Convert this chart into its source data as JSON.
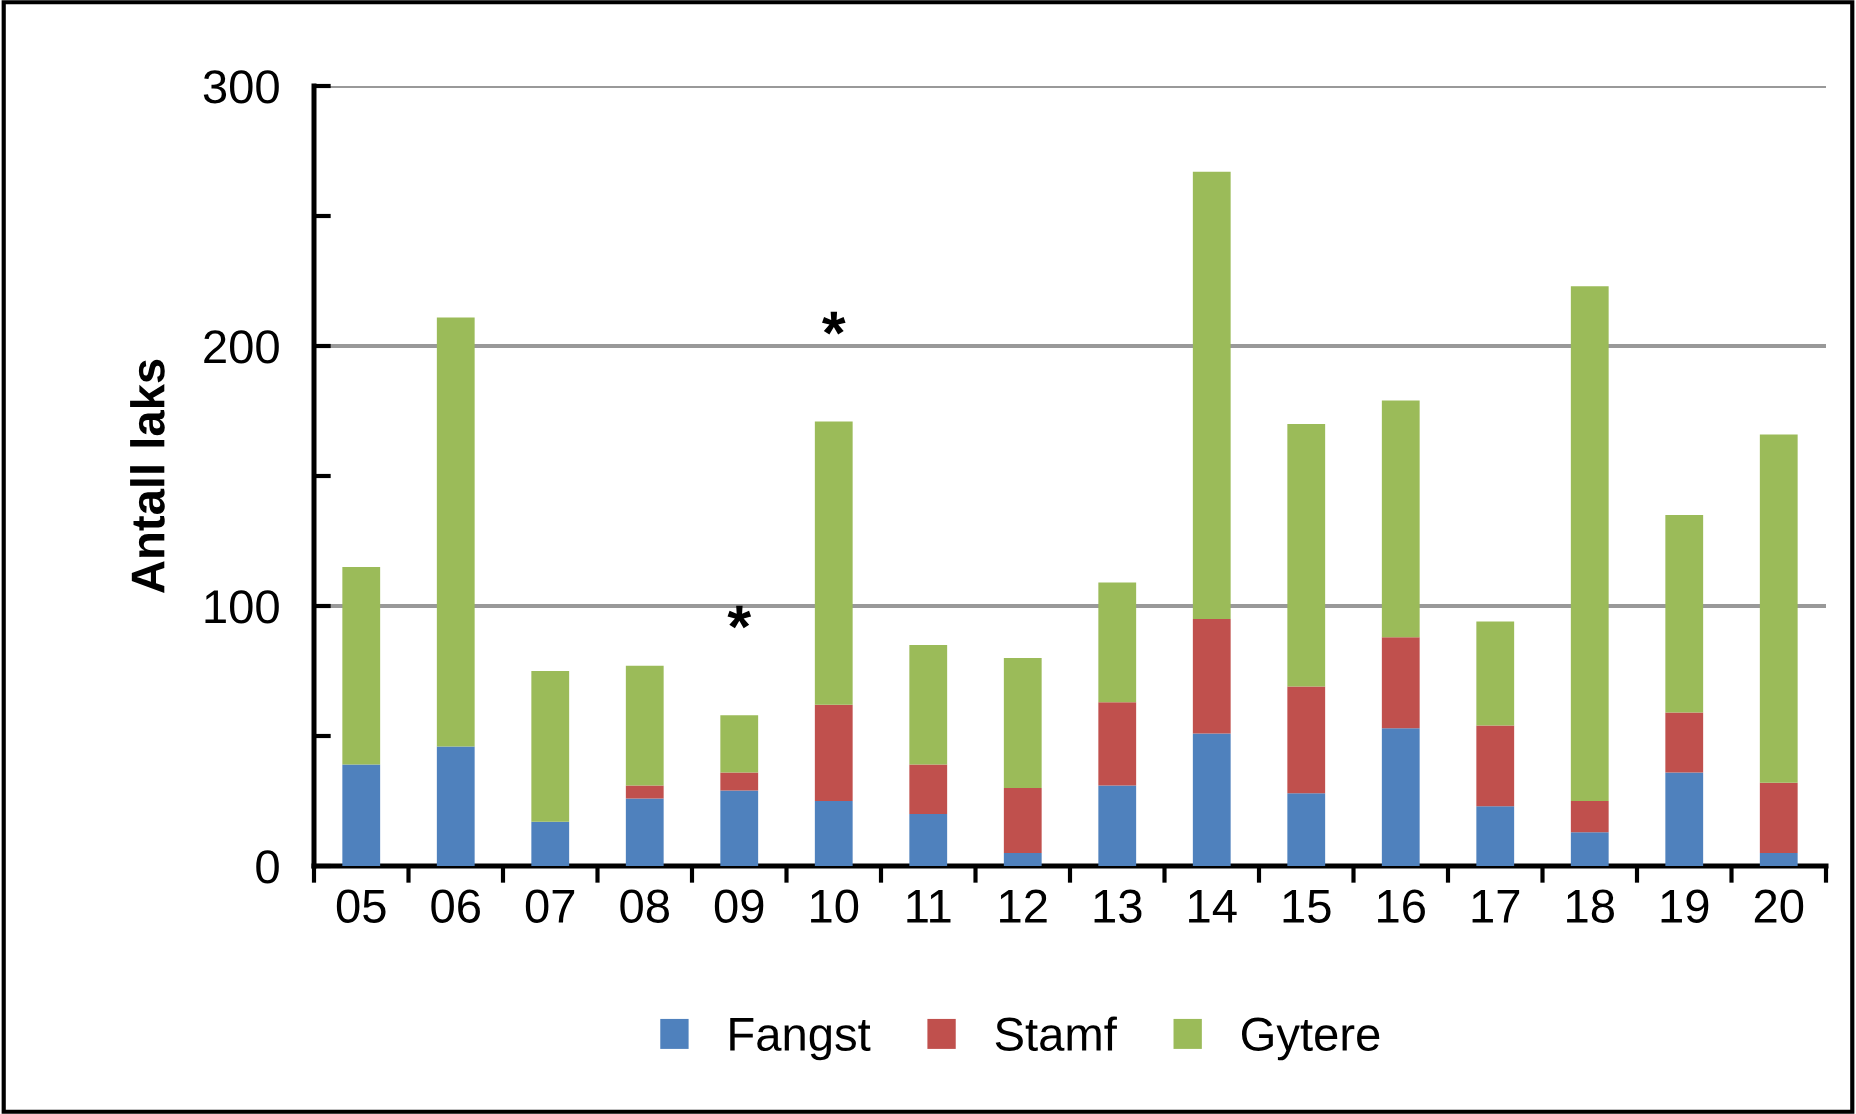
{
  "chart_data": {
    "type": "bar",
    "stacked": true,
    "ylabel": "Antall laks",
    "categories": [
      "05",
      "06",
      "07",
      "08",
      "09",
      "10",
      "11",
      "12",
      "13",
      "14",
      "15",
      "16",
      "17",
      "18",
      "19",
      "20"
    ],
    "series": [
      {
        "name": "Fangst",
        "color": "#4f81bd",
        "values": [
          39,
          46,
          17,
          26,
          29,
          25,
          20,
          5,
          31,
          51,
          28,
          53,
          23,
          13,
          36,
          5
        ]
      },
      {
        "name": "Stamf",
        "color": "#c0504d",
        "values": [
          0,
          0,
          0,
          5,
          7,
          37,
          19,
          25,
          32,
          44,
          41,
          35,
          31,
          12,
          23,
          27
        ]
      },
      {
        "name": "Gytere",
        "color": "#9bbb59",
        "values": [
          76,
          165,
          58,
          46,
          22,
          109,
          46,
          50,
          46,
          172,
          101,
          91,
          40,
          198,
          76,
          134
        ]
      }
    ],
    "ylim": [
      0,
      300
    ],
    "yticks": [
      0,
      {
        "value": 50,
        "label": null
      },
      100,
      {
        "value": 150,
        "label": null
      },
      200,
      {
        "value": 250,
        "label": null
      },
      300
    ],
    "grid": "y",
    "legend": "bottom",
    "annotations": [
      {
        "text": "*",
        "x": "09",
        "y": 58
      },
      {
        "text": "*",
        "x": "10",
        "y": 171
      }
    ]
  }
}
